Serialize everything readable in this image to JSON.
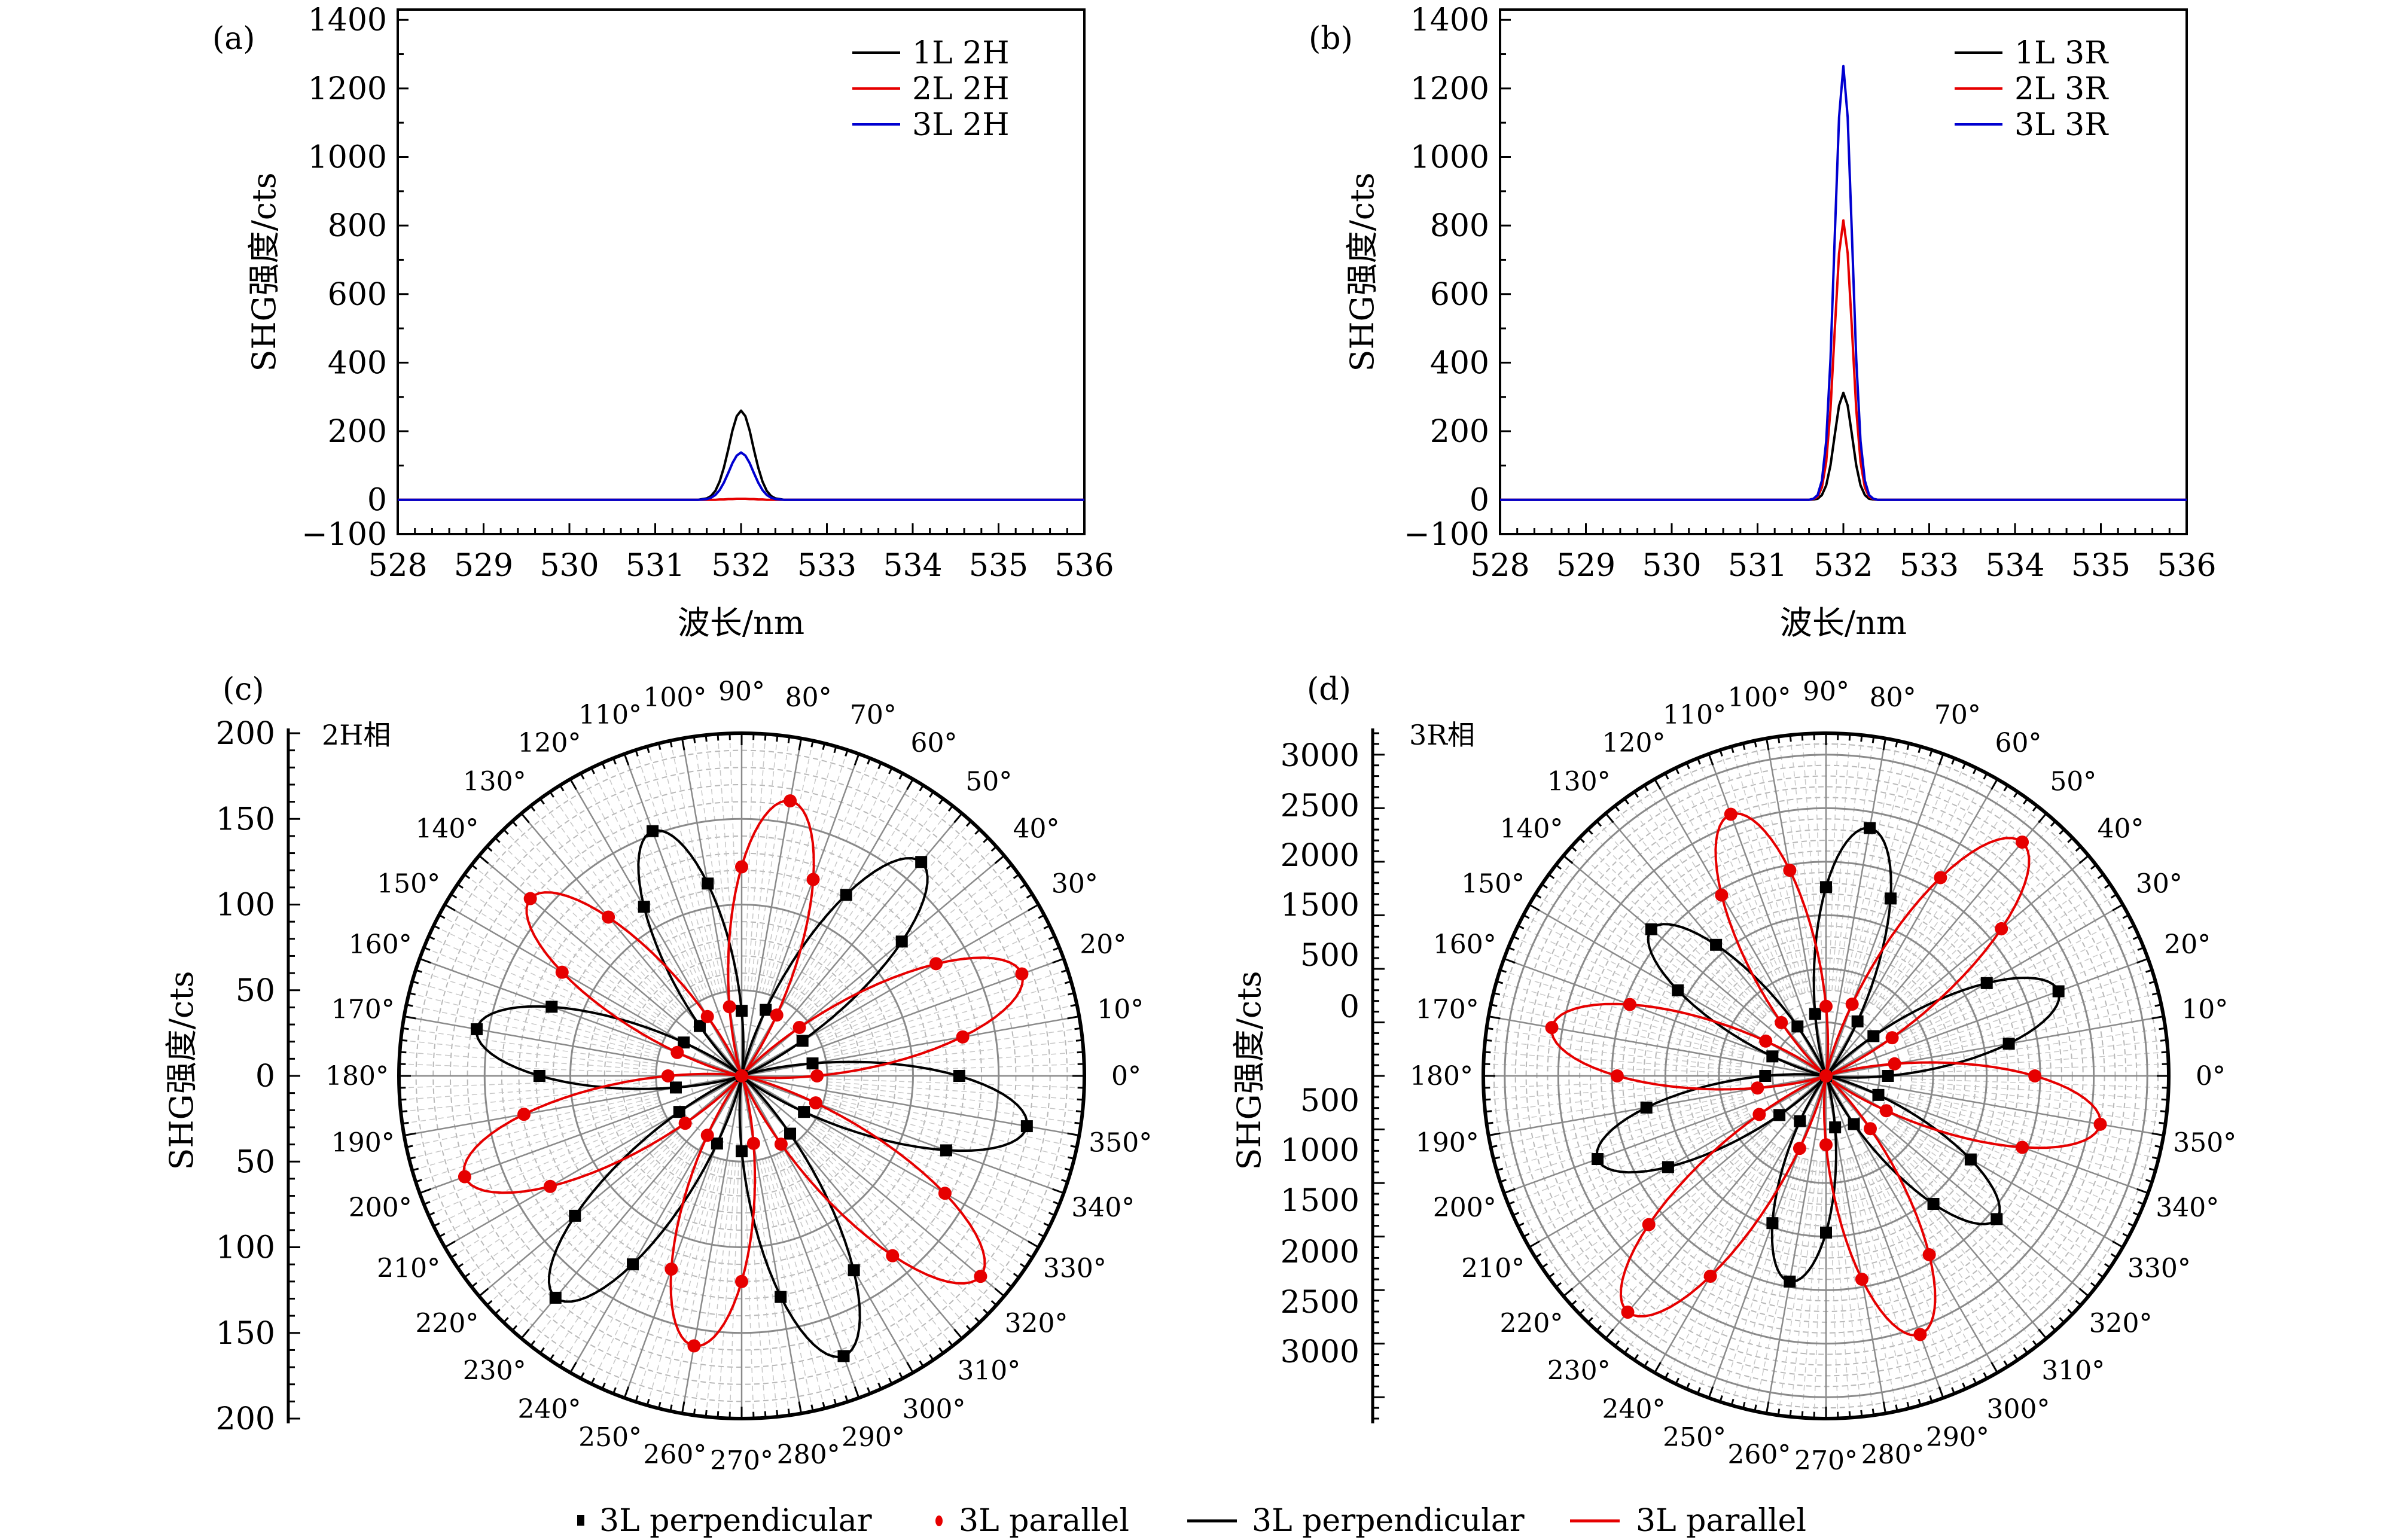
{
  "figure": {
    "legend_bottom": [
      {
        "type": "marker-square",
        "color": "#000000",
        "label": "3L perpendicular"
      },
      {
        "type": "marker-circle",
        "color": "#e60000",
        "label": "3L parallel"
      },
      {
        "type": "line",
        "color": "#000000",
        "label": "3L perpendicular"
      },
      {
        "type": "line",
        "color": "#e60000",
        "label": "3L parallel"
      }
    ]
  },
  "chart_data": [
    {
      "id": "a",
      "panel_label": "(a)",
      "type": "line",
      "title": "",
      "xlabel": "波长/nm",
      "ylabel": "SHG强度/cts",
      "xlim": [
        528,
        536
      ],
      "ylim": [
        -100,
        1430
      ],
      "xticks": [
        528,
        529,
        530,
        531,
        532,
        533,
        534,
        535,
        536
      ],
      "yticks": [
        -100,
        0,
        200,
        400,
        600,
        800,
        1000,
        1200,
        1400
      ],
      "ytick_labels": [
        "−100",
        "0",
        "200",
        "400",
        "600",
        "800",
        "1000",
        "1200",
        "1400"
      ],
      "grid": false,
      "legend_position": "top-right",
      "x": [
        528,
        531.5,
        531.55,
        531.6,
        531.65,
        531.7,
        531.75,
        531.8,
        531.85,
        531.9,
        531.95,
        532.0,
        532.05,
        532.1,
        532.15,
        532.2,
        532.25,
        532.3,
        532.35,
        532.4,
        532.45,
        532.5,
        536
      ],
      "series": [
        {
          "name": "1L 2H",
          "color": "#000000",
          "values": [
            0,
            0,
            2,
            4,
            11,
            26,
            53,
            94,
            146,
            202,
            244,
            260,
            244,
            202,
            146,
            94,
            53,
            26,
            11,
            4,
            2,
            0,
            0
          ]
        },
        {
          "name": "2L 2H",
          "color": "#e60000",
          "values": [
            0,
            0,
            0,
            0,
            0,
            0,
            1,
            1,
            2,
            2,
            3,
            3,
            3,
            2,
            2,
            1,
            1,
            0,
            0,
            0,
            0,
            0,
            0
          ]
        },
        {
          "name": "3L 2H",
          "color": "#0000d0",
          "values": [
            0,
            0,
            1,
            2,
            6,
            14,
            28,
            50,
            78,
            107,
            129,
            138,
            129,
            107,
            78,
            50,
            28,
            14,
            6,
            2,
            1,
            0,
            0
          ]
        }
      ]
    },
    {
      "id": "b",
      "panel_label": "(b)",
      "type": "line",
      "title": "",
      "xlabel": "波长/nm",
      "ylabel": "SHG强度/cts",
      "xlim": [
        528,
        536
      ],
      "ylim": [
        -100,
        1430
      ],
      "xticks": [
        528,
        529,
        530,
        531,
        532,
        533,
        534,
        535,
        536
      ],
      "yticks": [
        -100,
        0,
        200,
        400,
        600,
        800,
        1000,
        1200,
        1400
      ],
      "ytick_labels": [
        "−100",
        "0",
        "200",
        "400",
        "600",
        "800",
        "1000",
        "1200",
        "1400"
      ],
      "grid": false,
      "legend_position": "top-right",
      "x": [
        528,
        531.6,
        531.65,
        531.7,
        531.75,
        531.8,
        531.85,
        531.9,
        531.95,
        532.0,
        532.05,
        532.1,
        532.15,
        532.2,
        532.25,
        532.3,
        532.35,
        532.4,
        536
      ],
      "series": [
        {
          "name": "1L 3R",
          "color": "#000000",
          "values": [
            0,
            0,
            1,
            3,
            14,
            42,
            101,
            189,
            275,
            312,
            275,
            189,
            101,
            42,
            14,
            3,
            1,
            0,
            0
          ]
        },
        {
          "name": "2L 3R",
          "color": "#e60000",
          "values": [
            0,
            0,
            2,
            9,
            36,
            110,
            265,
            495,
            719,
            815,
            719,
            495,
            265,
            110,
            36,
            9,
            2,
            0,
            0
          ]
        },
        {
          "name": "3L 3R",
          "color": "#0000d0",
          "values": [
            0,
            0,
            3,
            14,
            56,
            171,
            411,
            768,
            1116,
            1265,
            1116,
            768,
            411,
            171,
            56,
            14,
            3,
            0,
            0
          ]
        }
      ]
    },
    {
      "id": "c",
      "panel_label": "(c)",
      "phase_label": "2H相",
      "type": "polar",
      "ylabel": "SHG强度/cts",
      "rlim": [
        0,
        200
      ],
      "r_rings": [
        50,
        100,
        150,
        200
      ],
      "axis_tick_labels": [
        "200",
        "150",
        "100",
        "50",
        "0",
        "50",
        "100",
        "150",
        "200"
      ],
      "theta_labels": [
        "0°",
        "10°",
        "20°",
        "30°",
        "40°",
        "50°",
        "60°",
        "70°",
        "80°",
        "90°",
        "100°",
        "110°",
        "120°",
        "130°",
        "140°",
        "150°",
        "160°",
        "170°",
        "180°",
        "190°",
        "200°",
        "210°",
        "220°",
        "230°",
        "240°",
        "250°",
        "260°",
        "270°",
        "280°",
        "290°",
        "300°",
        "310°",
        "320°",
        "330°",
        "340°",
        "350°"
      ],
      "theta": [
        0,
        10,
        20,
        30,
        40,
        50,
        60,
        70,
        80,
        90,
        100,
        110,
        120,
        130,
        140,
        150,
        160,
        170,
        180,
        190,
        200,
        210,
        220,
        230,
        240,
        250,
        260,
        270,
        280,
        290,
        300,
        310,
        320,
        330,
        340,
        350
      ],
      "series": [
        {
          "name": "3L perpendicular",
          "kind": "points",
          "marker": "square",
          "color": "#000000",
          "values": [
            127,
            42,
            0,
            41,
            122,
            163,
            122,
            41,
            0,
            38,
            114,
            152,
            114,
            38,
            0,
            39,
            118,
            157,
            118,
            39,
            0,
            42,
            127,
            169,
            127,
            42,
            0,
            44,
            131,
            174,
            131,
            44,
            0,
            42,
            127,
            169
          ]
        },
        {
          "name": "3L parallel",
          "kind": "points",
          "marker": "circle",
          "color": "#e60000",
          "values": [
            44,
            131,
            174,
            131,
            44,
            0,
            41,
            122,
            163,
            122,
            41,
            0,
            40,
            121,
            161,
            121,
            40,
            0,
            43,
            129,
            172,
            129,
            43,
            0,
            40,
            120,
            160,
            120,
            40,
            0,
            46,
            137,
            182,
            137,
            46,
            0
          ]
        },
        {
          "name": "3L perpendicular",
          "kind": "fit",
          "color": "#000000",
          "petals": [
            {
              "center": 350,
              "amp": 169
            },
            {
              "center": 50,
              "amp": 163
            },
            {
              "center": 110,
              "amp": 152
            },
            {
              "center": 170,
              "amp": 157
            },
            {
              "center": 230,
              "amp": 169
            },
            {
              "center": 290,
              "amp": 174
            }
          ]
        },
        {
          "name": "3L parallel",
          "kind": "fit",
          "color": "#e60000",
          "petals": [
            {
              "center": 20,
              "amp": 174
            },
            {
              "center": 80,
              "amp": 163
            },
            {
              "center": 140,
              "amp": 161
            },
            {
              "center": 200,
              "amp": 172
            },
            {
              "center": 260,
              "amp": 160
            },
            {
              "center": 320,
              "amp": 182
            }
          ]
        }
      ]
    },
    {
      "id": "d",
      "panel_label": "(d)",
      "phase_label": "3R相",
      "type": "polar",
      "ylabel": "SHG强度/cts",
      "rlim": [
        0,
        3200
      ],
      "r_rings": [
        500,
        1000,
        1500,
        2000,
        2500,
        3000
      ],
      "axis_tick_labels_upper": [
        "3000",
        "2500",
        "2000",
        "1500",
        "500",
        "0"
      ],
      "axis_tick_labels_lower": [
        "500",
        "1000",
        "1500",
        "2000",
        "2500",
        "3000"
      ],
      "theta_labels": [
        "0°",
        "10°",
        "20°",
        "30°",
        "40°",
        "50°",
        "60°",
        "70°",
        "80°",
        "90°",
        "100°",
        "110°",
        "120°",
        "130°",
        "140°",
        "150°",
        "160°",
        "170°",
        "180°",
        "190°",
        "200°",
        "210°",
        "220°",
        "230°",
        "240°",
        "250°",
        "260°",
        "270°",
        "280°",
        "290°",
        "300°",
        "310°",
        "320°",
        "330°",
        "340°",
        "350°"
      ],
      "theta": [
        0,
        10,
        20,
        30,
        40,
        50,
        60,
        70,
        80,
        90,
        100,
        110,
        120,
        130,
        140,
        150,
        160,
        170,
        180,
        190,
        200,
        210,
        220,
        230,
        240,
        250,
        260,
        270,
        280,
        290,
        300,
        310,
        320,
        330,
        340,
        350
      ],
      "series": [
        {
          "name": "3L perpendicular",
          "kind": "points",
          "marker": "square",
          "color": "#000000",
          "values": [
            578,
            1733,
            2310,
            1733,
            578,
            0,
            588,
            1763,
            2350,
            1763,
            588,
            0,
            533,
            1598,
            2130,
            1598,
            533,
            0,
            568,
            1703,
            2270,
            1703,
            568,
            0,
            488,
            1463,
            1950,
            1463,
            488,
            0,
            520,
            1560,
            2080,
            1560,
            520,
            0
          ]
        },
        {
          "name": "3L parallel",
          "kind": "points",
          "marker": "circle",
          "color": "#e60000",
          "values": [
            1950,
            650,
            0,
            713,
            2138,
            2850,
            2138,
            713,
            0,
            650,
            1950,
            2600,
            1950,
            650,
            0,
            650,
            1950,
            2600,
            1950,
            650,
            0,
            720,
            2160,
            2880,
            2160,
            720,
            0,
            643,
            1928,
            2570,
            1928,
            643,
            0,
            650,
            1950,
            2600
          ]
        },
        {
          "name": "3L perpendicular",
          "kind": "fit",
          "color": "#000000",
          "petals": [
            {
              "center": 20,
              "amp": 2310
            },
            {
              "center": 80,
              "amp": 2350
            },
            {
              "center": 140,
              "amp": 2130
            },
            {
              "center": 200,
              "amp": 2270
            },
            {
              "center": 260,
              "amp": 1950
            },
            {
              "center": 320,
              "amp": 2080
            }
          ]
        },
        {
          "name": "3L parallel",
          "kind": "fit",
          "color": "#e60000",
          "petals": [
            {
              "center": 50,
              "amp": 2850
            },
            {
              "center": 110,
              "amp": 2600
            },
            {
              "center": 170,
              "amp": 2600
            },
            {
              "center": 230,
              "amp": 2880
            },
            {
              "center": 290,
              "amp": 2570
            },
            {
              "center": 350,
              "amp": 2600
            }
          ]
        }
      ]
    }
  ]
}
